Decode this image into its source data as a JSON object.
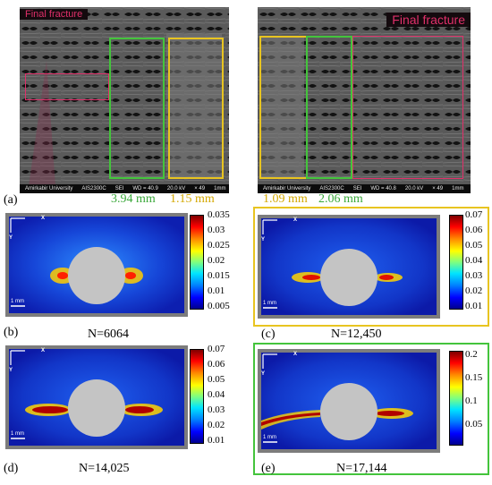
{
  "sem_left": {
    "fracture_label": "Final fracture",
    "footer": {
      "institution": "Amirkabir University",
      "instrument": "AIS2300C",
      "mode": "SEI",
      "wd": "WD = 40.9",
      "kv": "20.0 kV",
      "mag": "× 49",
      "scale": "1mm"
    }
  },
  "sem_right": {
    "fracture_label": "Final fracture",
    "footer": {
      "institution": "Amirkabir University",
      "instrument": "AIS2300C",
      "mode": "SEI",
      "wd": "WD = 40.8",
      "kv": "20.0 kV",
      "mag": "× 49",
      "scale": "1mm"
    }
  },
  "panel_a": {
    "label": "(a)",
    "dim_green_left": "3.94 mm",
    "dim_yellow_left": "1.15 mm",
    "dim_yellow_right": "1.09 mm",
    "dim_green_right": "2.06 mm"
  },
  "panels": [
    {
      "label": "(b)",
      "caption": "N=6064",
      "ticks": [
        "0.035",
        "0.03",
        "0.025",
        "0.02",
        "0.015",
        "0.01",
        "0.005"
      ]
    },
    {
      "label": "(c)",
      "caption": "N=12,450",
      "ticks": [
        "0.07",
        "0.06",
        "0.05",
        "0.04",
        "0.03",
        "0.02",
        "0.01"
      ]
    },
    {
      "label": "(d)",
      "caption": "N=14,025",
      "ticks": [
        "0.07",
        "0.06",
        "0.05",
        "0.04",
        "0.03",
        "0.02",
        "0.01"
      ]
    },
    {
      "label": "(e)",
      "caption": "N=17,144",
      "ticks": [
        "0.2",
        "0.15",
        "0.1",
        "0.05"
      ]
    }
  ],
  "dic_common": {
    "axis_x": "X",
    "axis_y": "Y",
    "scale": "1 mm"
  },
  "colors": {
    "green": "#44c43c",
    "yellow": "#e8c420",
    "pink": "#e0306a",
    "green_text": "#3aa83a",
    "yellow_text": "#d4a800"
  }
}
